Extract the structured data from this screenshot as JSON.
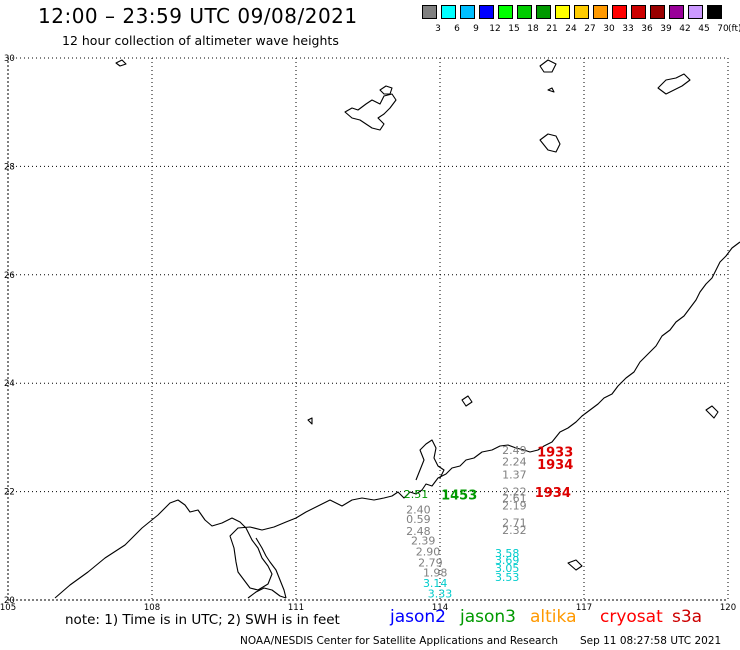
{
  "title": "12:00 – 23:59 UTC 09/08/2021",
  "subtitle": "12 hour collection of altimeter wave heights",
  "legend": {
    "unit": "(ft)",
    "bins": [
      {
        "label": "3",
        "color": "#808080"
      },
      {
        "label": "6",
        "color": "#00ffff"
      },
      {
        "label": "9",
        "color": "#00bfff"
      },
      {
        "label": "12",
        "color": "#0000ff"
      },
      {
        "label": "15",
        "color": "#00ff00"
      },
      {
        "label": "18",
        "color": "#00cc00"
      },
      {
        "label": "21",
        "color": "#009900"
      },
      {
        "label": "24",
        "color": "#ffff00"
      },
      {
        "label": "27",
        "color": "#ffcc00"
      },
      {
        "label": "30",
        "color": "#ff9900"
      },
      {
        "label": "33",
        "color": "#ff0000"
      },
      {
        "label": "36",
        "color": "#cc0000"
      },
      {
        "label": "39",
        "color": "#990000"
      },
      {
        "label": "42",
        "color": "#990099"
      },
      {
        "label": "45",
        "color": "#cc99ff"
      },
      {
        "label": "70",
        "color": "#000000"
      }
    ]
  },
  "axes": {
    "lon_ticks": [
      "105",
      "108",
      "111",
      "114",
      "117",
      "120"
    ],
    "lat_ticks": [
      "30",
      "28",
      "26",
      "24",
      "22",
      "20"
    ],
    "lon_range": [
      105,
      120
    ],
    "lat_range": [
      20,
      30
    ]
  },
  "observations": [
    {
      "lon": 115.55,
      "lat": 22.69,
      "text": "2.49",
      "color": "#808080"
    },
    {
      "lon": 115.55,
      "lat": 22.48,
      "text": "2.24",
      "color": "#808080"
    },
    {
      "lon": 115.55,
      "lat": 22.24,
      "text": "1.37",
      "color": "#808080"
    },
    {
      "lon": 115.55,
      "lat": 21.93,
      "text": "2.22",
      "color": "#808080"
    },
    {
      "lon": 115.55,
      "lat": 21.81,
      "text": "2.61",
      "color": "#808080"
    },
    {
      "lon": 115.55,
      "lat": 21.67,
      "text": "2.19",
      "color": "#808080"
    },
    {
      "lon": 115.55,
      "lat": 21.36,
      "text": "2.71",
      "color": "#808080"
    },
    {
      "lon": 115.55,
      "lat": 21.22,
      "text": "2.32",
      "color": "#808080"
    },
    {
      "lon": 113.55,
      "lat": 21.6,
      "text": "2.40",
      "color": "#808080"
    },
    {
      "lon": 113.55,
      "lat": 21.42,
      "text": "0.59",
      "color": "#808080"
    },
    {
      "lon": 113.55,
      "lat": 21.2,
      "text": "2.48",
      "color": "#808080"
    },
    {
      "lon": 113.65,
      "lat": 21.02,
      "text": "2.39",
      "color": "#808080"
    },
    {
      "lon": 113.75,
      "lat": 20.82,
      "text": "2.90",
      "color": "#808080"
    },
    {
      "lon": 113.8,
      "lat": 20.62,
      "text": "2.79",
      "color": "#808080"
    },
    {
      "lon": 113.9,
      "lat": 20.43,
      "text": "1.98",
      "color": "#808080"
    },
    {
      "lon": 113.9,
      "lat": 20.24,
      "text": "3.14",
      "color": "#00cccc"
    },
    {
      "lon": 114.0,
      "lat": 20.05,
      "text": "3.33",
      "color": "#00cccc"
    },
    {
      "lon": 115.4,
      "lat": 20.79,
      "text": "3.58",
      "color": "#00cccc"
    },
    {
      "lon": 115.4,
      "lat": 20.66,
      "text": "3.69",
      "color": "#00cccc"
    },
    {
      "lon": 115.4,
      "lat": 20.52,
      "text": "3.05",
      "color": "#00cccc"
    },
    {
      "lon": 115.4,
      "lat": 20.35,
      "text": "3.53",
      "color": "#00cccc"
    },
    {
      "lon": 113.5,
      "lat": 21.88,
      "text": "2.51",
      "color": "#009900"
    }
  ],
  "time_labels": [
    {
      "lon": 116.4,
      "lat": 22.65,
      "text": "1933",
      "color": "#dd0000"
    },
    {
      "lon": 116.4,
      "lat": 22.42,
      "text": "1934",
      "color": "#dd0000"
    },
    {
      "lon": 116.35,
      "lat": 21.9,
      "text": "1934",
      "color": "#dd0000"
    },
    {
      "lon": 114.4,
      "lat": 21.85,
      "text": "1453",
      "color": "#009900"
    }
  ],
  "note": "note:  1)  Time is in UTC;  2)  SWH is in feet",
  "satellites": [
    {
      "name": "jason2",
      "color": "#0000ff"
    },
    {
      "name": "jason3",
      "color": "#009900"
    },
    {
      "name": "altika",
      "color": "#ff9900"
    },
    {
      "name": "cryosat",
      "color": "#ff0000"
    },
    {
      "name": "s3a",
      "color": "#cc0000"
    }
  ],
  "credit": "NOAA/NESDIS Center for Satellite Applications and Research",
  "timestamp": "Sep 11 08:27:58 UTC 2021"
}
